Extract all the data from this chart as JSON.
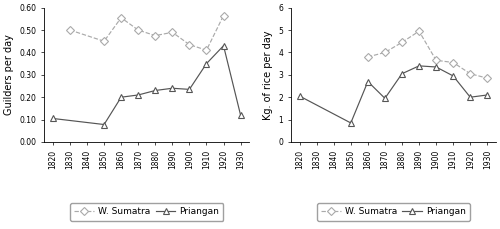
{
  "left": {
    "ylabel": "Guilders per day",
    "ylim": [
      0.0,
      0.6
    ],
    "yticks": [
      0.0,
      0.1,
      0.2,
      0.3,
      0.4,
      0.5,
      0.6
    ],
    "ws_x": [
      1830,
      1850,
      1860,
      1870,
      1880,
      1890,
      1900,
      1910,
      1920
    ],
    "ws_y": [
      0.5,
      0.45,
      0.555,
      0.5,
      0.475,
      0.49,
      0.435,
      0.41,
      0.565
    ],
    "pr_x": [
      1820,
      1850,
      1860,
      1870,
      1880,
      1890,
      1900,
      1910,
      1920,
      1930
    ],
    "pr_y": [
      0.105,
      0.078,
      0.2,
      0.21,
      0.23,
      0.24,
      0.235,
      0.35,
      0.43,
      0.12
    ]
  },
  "right": {
    "ylabel": "Kg. of rice per day",
    "ylim": [
      0,
      6
    ],
    "yticks": [
      0,
      1,
      2,
      3,
      4,
      5,
      6
    ],
    "ws_x": [
      1860,
      1870,
      1880,
      1890,
      1900,
      1910,
      1920,
      1930
    ],
    "ws_y": [
      3.8,
      4.0,
      4.45,
      4.95,
      3.65,
      3.55,
      3.05,
      2.85
    ],
    "pr_x": [
      1820,
      1850,
      1860,
      1870,
      1880,
      1890,
      1900,
      1910,
      1920,
      1930
    ],
    "pr_y": [
      2.05,
      0.85,
      2.7,
      1.95,
      3.05,
      3.4,
      3.35,
      2.95,
      2.0,
      2.1
    ]
  },
  "xticks": [
    1820,
    1830,
    1840,
    1850,
    1860,
    1870,
    1880,
    1890,
    1900,
    1910,
    1920,
    1930
  ],
  "ws_label": "W. Sumatra",
  "pr_label": "Priangan",
  "ws_color": "#aaaaaa",
  "pr_color": "#555555",
  "ws_linestyle": "--",
  "pr_linestyle": "-",
  "ws_marker": "D",
  "pr_marker": "^",
  "marker_size": 4,
  "legend_fontsize": 6.5,
  "tick_fontsize": 5.5,
  "label_fontsize": 7
}
